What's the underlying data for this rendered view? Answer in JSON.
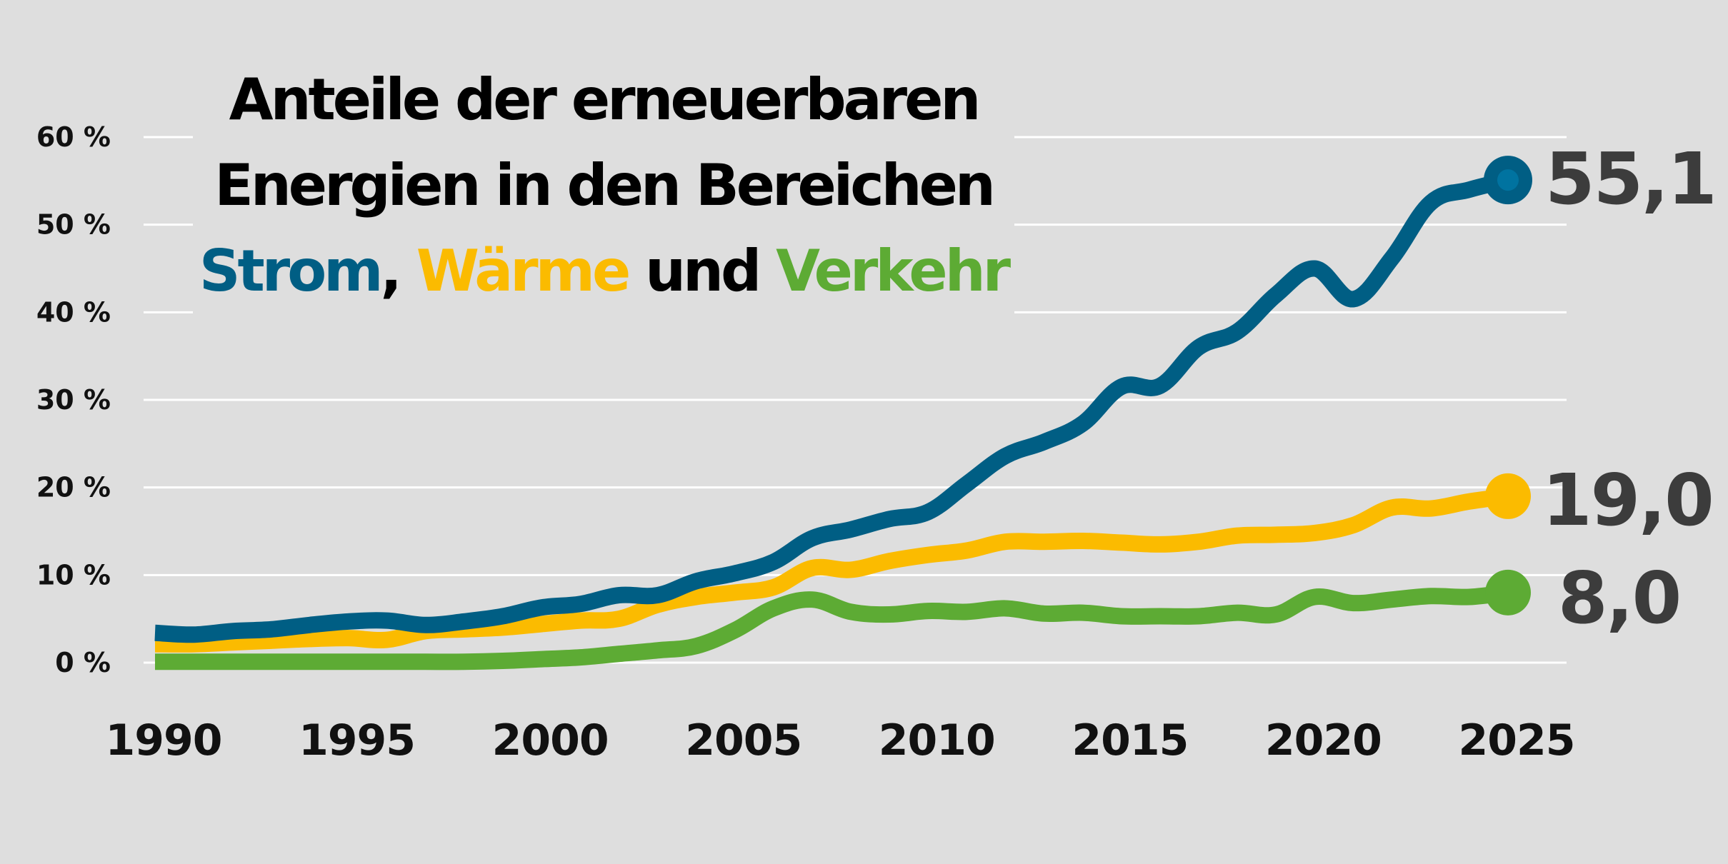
{
  "chart_data": {
    "type": "line",
    "title": {
      "line1": "Anteile der erneuerbaren",
      "line2": "Energien in den Bereichen",
      "line3": [
        {
          "text": "Strom",
          "color": "#005e84"
        },
        {
          "text": ", ",
          "color": "#000000"
        },
        {
          "text": "Wärme",
          "color": "#fbbb00"
        },
        {
          "text": " und ",
          "color": "#000000"
        },
        {
          "text": "Verkehr",
          "color": "#5dab34"
        }
      ]
    },
    "xlabel": "",
    "ylabel": "",
    "xlim": [
      1990,
      2025
    ],
    "ylim": [
      0,
      60
    ],
    "grid": true,
    "xticks": [
      1990,
      1995,
      2000,
      2005,
      2010,
      2015,
      2020,
      2025
    ],
    "xtick_labels": [
      "1990",
      "1995",
      "2000",
      "2005",
      "2010",
      "2015",
      "2020",
      "2025"
    ],
    "yticks": [
      0,
      10,
      20,
      30,
      40,
      50,
      60
    ],
    "ytick_labels": [
      "0 %",
      "10 %",
      "20 %",
      "30 %",
      "40 %",
      "50 %",
      "60 %"
    ],
    "x": [
      1990,
      1991,
      1992,
      1993,
      1994,
      1995,
      1996,
      1997,
      1998,
      1999,
      2000,
      2001,
      2002,
      2003,
      2004,
      2005,
      2006,
      2007,
      2008,
      2009,
      2010,
      2011,
      2012,
      2013,
      2014,
      2015,
      2016,
      2017,
      2018,
      2019,
      2020,
      2021,
      2022,
      2023,
      2024,
      2025
    ],
    "series": [
      {
        "name": "Strom",
        "color": "#005e84",
        "end_label": "55,1",
        "values": [
          3.4,
          3.2,
          3.6,
          3.8,
          4.3,
          4.7,
          4.8,
          4.3,
          4.7,
          5.3,
          6.3,
          6.7,
          7.7,
          7.7,
          9.3,
          10.2,
          11.5,
          14.2,
          15.2,
          16.4,
          17.2,
          20.4,
          23.6,
          25.2,
          27.3,
          31.5,
          31.6,
          36.0,
          37.8,
          42.0,
          45.0,
          41.5,
          46.2,
          52.5,
          54.0,
          55.1
        ]
      },
      {
        "name": "Wärme",
        "color": "#fbbb00",
        "end_label": "19,0",
        "values": [
          2.1,
          2.1,
          2.3,
          2.5,
          2.7,
          2.8,
          2.6,
          3.6,
          3.8,
          4.0,
          4.4,
          4.8,
          5.0,
          6.6,
          7.5,
          8.0,
          8.6,
          10.8,
          10.6,
          11.6,
          12.3,
          12.8,
          13.8,
          13.8,
          13.9,
          13.7,
          13.5,
          13.8,
          14.5,
          14.6,
          14.8,
          15.7,
          17.7,
          17.6,
          18.4,
          19.0
        ]
      },
      {
        "name": "Verkehr",
        "color": "#5dab34",
        "end_label": "8,0",
        "values": [
          0.1,
          0.1,
          0.1,
          0.1,
          0.1,
          0.1,
          0.1,
          0.1,
          0.1,
          0.2,
          0.4,
          0.6,
          1.0,
          1.4,
          1.9,
          3.7,
          6.2,
          7.2,
          5.8,
          5.5,
          5.9,
          5.8,
          6.2,
          5.6,
          5.7,
          5.3,
          5.3,
          5.3,
          5.7,
          5.5,
          7.5,
          6.8,
          7.2,
          7.6,
          7.5,
          8.0
        ]
      }
    ]
  }
}
